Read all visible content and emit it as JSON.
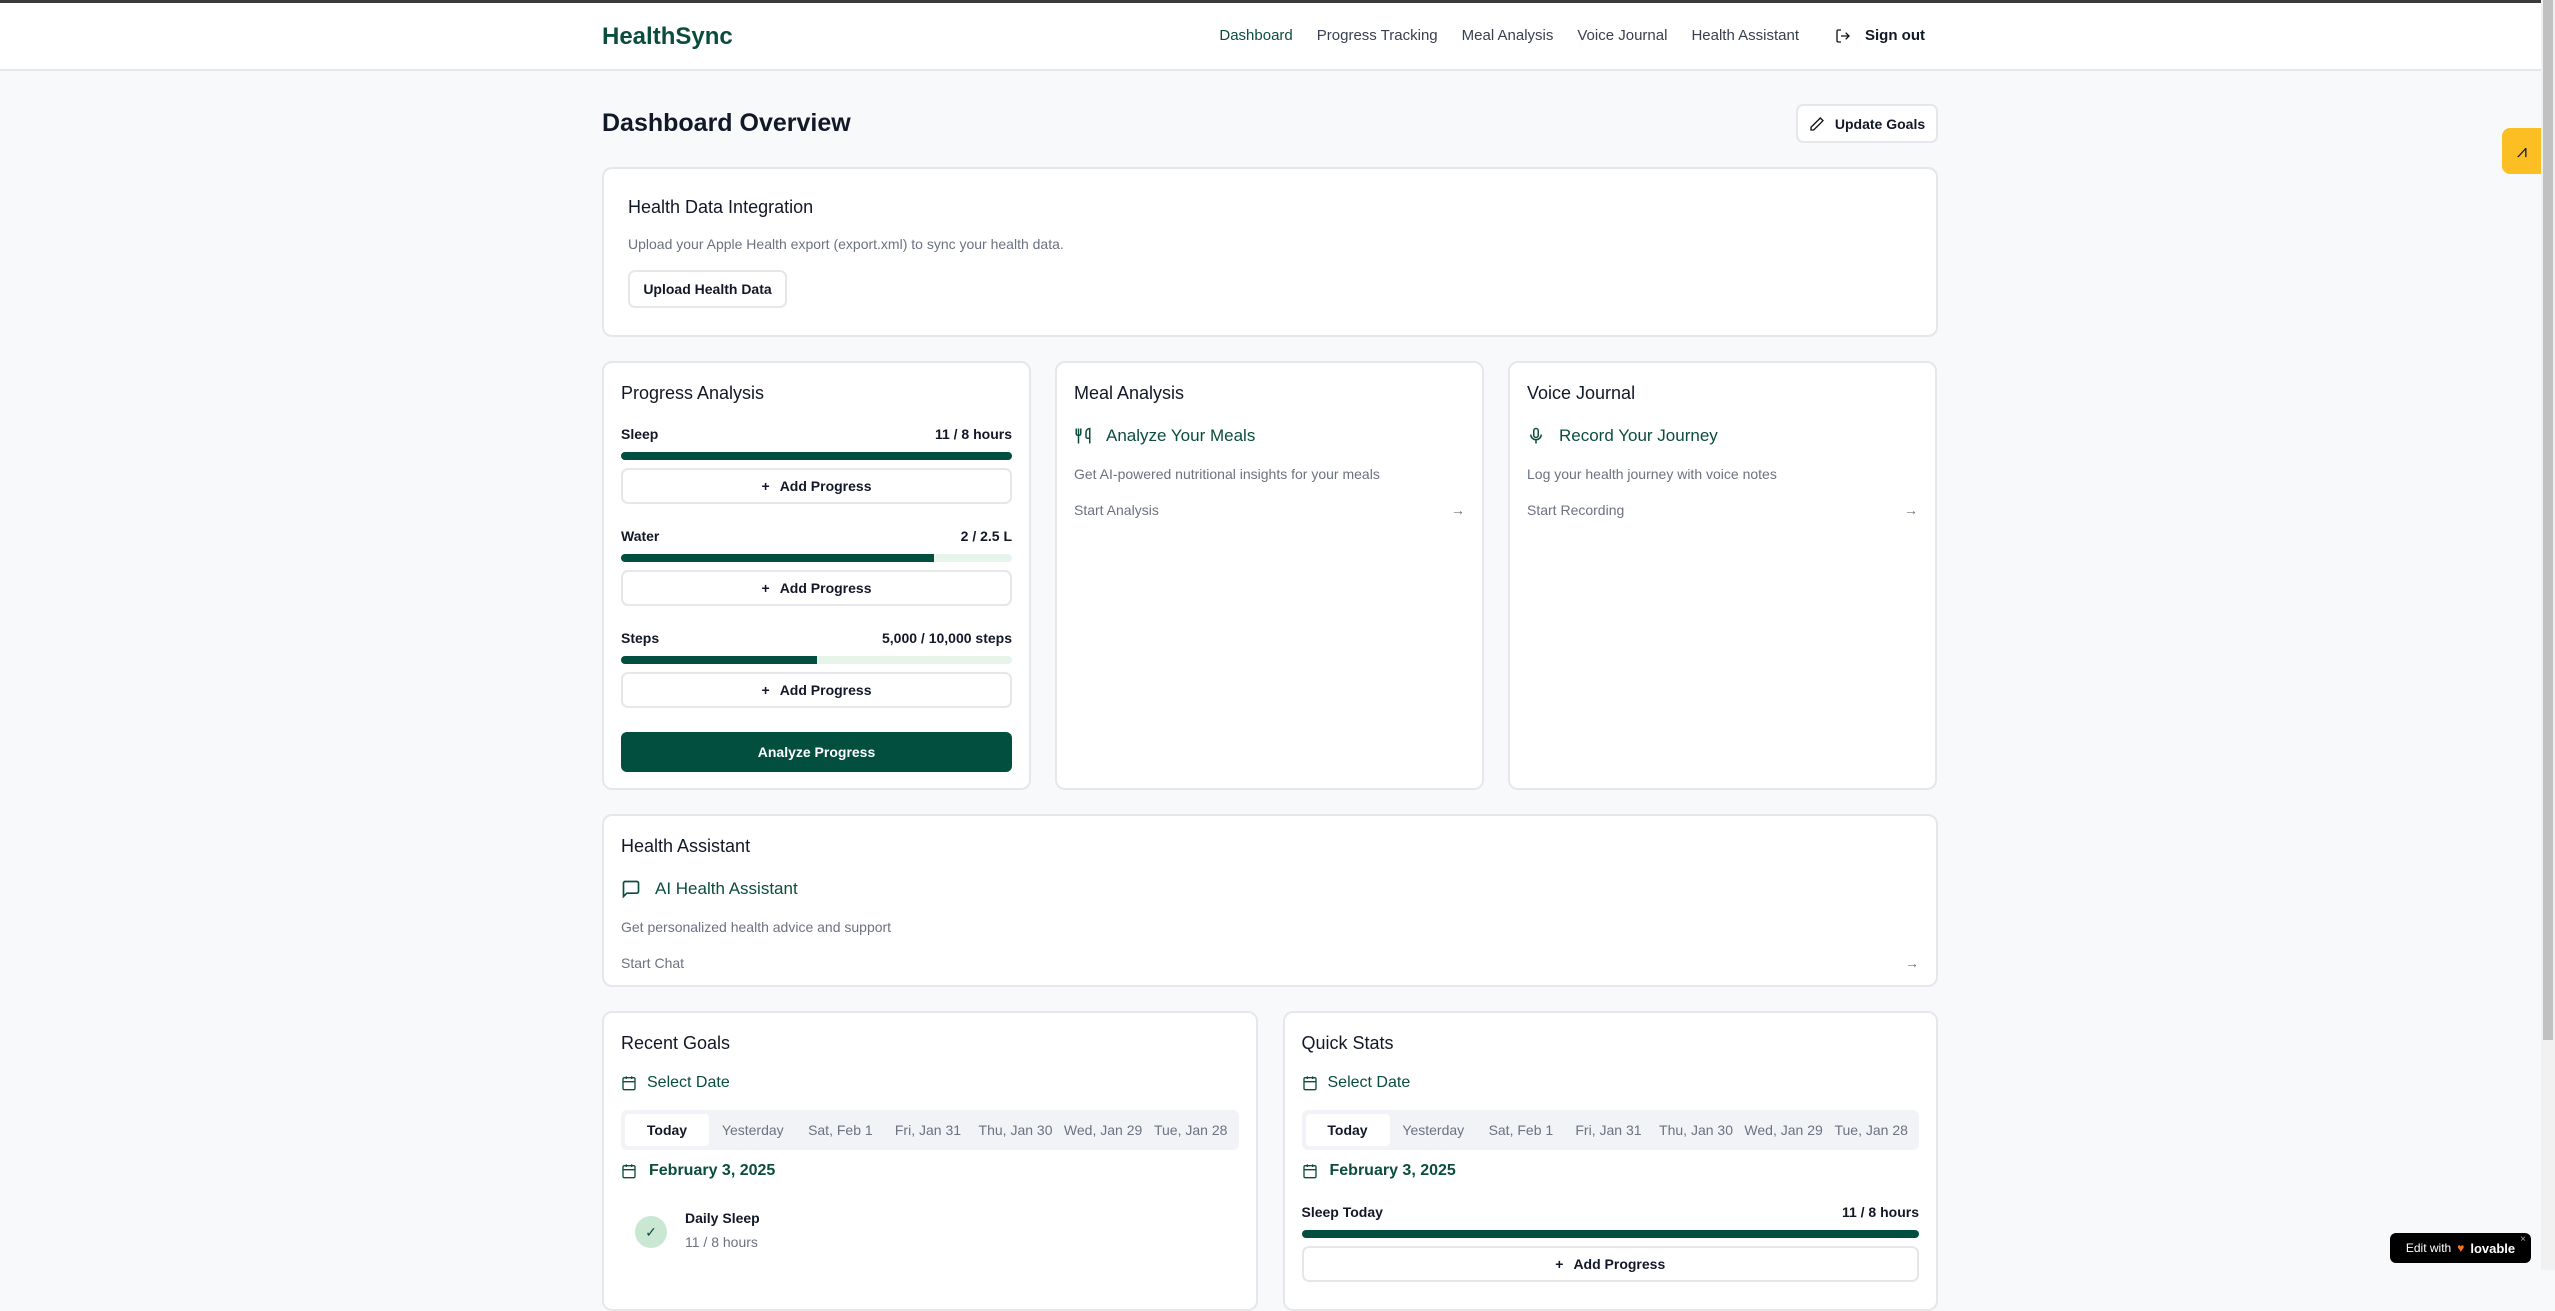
{
  "header": {
    "logo": "HealthSync",
    "nav": [
      "Dashboard",
      "Progress Tracking",
      "Meal Analysis",
      "Voice Journal",
      "Health Assistant"
    ],
    "sign_out": "Sign out",
    "active": "Dashboard"
  },
  "page": {
    "title": "Dashboard Overview",
    "update_goals": "Update Goals"
  },
  "integration": {
    "title": "Health Data Integration",
    "desc": "Upload your Apple Health export (export.xml) to sync your health data.",
    "button": "Upload Health Data"
  },
  "progress": {
    "title": "Progress Analysis",
    "add_label": "Add Progress",
    "analyze": "Analyze Progress",
    "items": [
      {
        "label": "Sleep",
        "value": "11 / 8 hours",
        "percent": 100
      },
      {
        "label": "Water",
        "value": "2 / 2.5 L",
        "percent": 80
      },
      {
        "label": "Steps",
        "value": "5,000 / 10,000 steps",
        "percent": 50
      }
    ]
  },
  "meal": {
    "title": "Meal Analysis",
    "feature": "Analyze Your Meals",
    "desc": "Get AI-powered nutritional insights for your meals",
    "link": "Start Analysis"
  },
  "voice": {
    "title": "Voice Journal",
    "feature": "Record Your Journey",
    "desc": "Log your health journey with voice notes",
    "link": "Start Recording"
  },
  "assistant": {
    "title": "Health Assistant",
    "feature": "AI Health Assistant",
    "desc": "Get personalized health advice and support",
    "link": "Start Chat"
  },
  "dates": [
    "Today",
    "Yesterday",
    "Sat, Feb 1",
    "Fri, Jan 31",
    "Thu, Jan 30",
    "Wed, Jan 29",
    "Tue, Jan 28"
  ],
  "recent_goals": {
    "title": "Recent Goals",
    "select_date": "Select Date",
    "date": "February 3, 2025",
    "goal_name": "Daily Sleep",
    "goal_value": "11 / 8 hours"
  },
  "quick_stats": {
    "title": "Quick Stats",
    "select_date": "Select Date",
    "date": "February 3, 2025",
    "stat_label": "Sleep Today",
    "stat_value": "11 / 8 hours",
    "stat_percent": 100,
    "add_label": "Add Progress"
  },
  "badge": {
    "text": "Edit with",
    "brand": "lovable",
    "close": "×"
  },
  "colors": {
    "primary": "#034f3f",
    "track": "#e6f4ea",
    "widget": "#fbbf24"
  }
}
